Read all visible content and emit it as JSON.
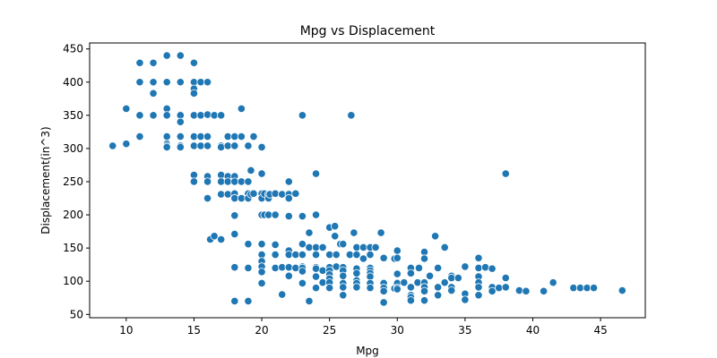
{
  "chart_data": {
    "type": "scatter",
    "title": "Mpg vs Displacement",
    "xlabel": "Mpg",
    "ylabel": "Displacement(in^3)",
    "xlim": [
      7.3,
      48.3
    ],
    "ylim": [
      45,
      459
    ],
    "x_ticks": [
      10,
      15,
      20,
      25,
      30,
      35,
      40,
      45
    ],
    "y_ticks": [
      50,
      100,
      150,
      200,
      250,
      300,
      350,
      400,
      450
    ],
    "grid": false,
    "marker_color": "#1f77b4",
    "points": [
      [
        9,
        304
      ],
      [
        10,
        360
      ],
      [
        10,
        307
      ],
      [
        11,
        429
      ],
      [
        11,
        400
      ],
      [
        11,
        350
      ],
      [
        11,
        318
      ],
      [
        12,
        429
      ],
      [
        12,
        400
      ],
      [
        12,
        383
      ],
      [
        12,
        350
      ],
      [
        13,
        440
      ],
      [
        13,
        400
      ],
      [
        13,
        360
      ],
      [
        13,
        350
      ],
      [
        13,
        318
      ],
      [
        13,
        307
      ],
      [
        13,
        304
      ],
      [
        13,
        302
      ],
      [
        14,
        440
      ],
      [
        14,
        400
      ],
      [
        14,
        351
      ],
      [
        14,
        350
      ],
      [
        14,
        340
      ],
      [
        14,
        318
      ],
      [
        14,
        304
      ],
      [
        14,
        302
      ],
      [
        15,
        429
      ],
      [
        15,
        400
      ],
      [
        15,
        390
      ],
      [
        15,
        383
      ],
      [
        15,
        350
      ],
      [
        15,
        318
      ],
      [
        15,
        304
      ],
      [
        15,
        260
      ],
      [
        15,
        250
      ],
      [
        15.5,
        400
      ],
      [
        15.5,
        350
      ],
      [
        15.5,
        318
      ],
      [
        15.5,
        304
      ],
      [
        16,
        400
      ],
      [
        16,
        351
      ],
      [
        16,
        318
      ],
      [
        16,
        304
      ],
      [
        16,
        258
      ],
      [
        16,
        250
      ],
      [
        16,
        225
      ],
      [
        16.2,
        163
      ],
      [
        16.5,
        168
      ],
      [
        16.5,
        350
      ],
      [
        17,
        350
      ],
      [
        17,
        304
      ],
      [
        17,
        302
      ],
      [
        17,
        260
      ],
      [
        17,
        250
      ],
      [
        17,
        231
      ],
      [
        17,
        163
      ],
      [
        17.5,
        318
      ],
      [
        17.5,
        304
      ],
      [
        17.5,
        258
      ],
      [
        17.5,
        250
      ],
      [
        17.5,
        231
      ],
      [
        18,
        318
      ],
      [
        18,
        304
      ],
      [
        18,
        258
      ],
      [
        18,
        250
      ],
      [
        18,
        232
      ],
      [
        18,
        225
      ],
      [
        18,
        199
      ],
      [
        18,
        171
      ],
      [
        18,
        121
      ],
      [
        18,
        70
      ],
      [
        18.5,
        360
      ],
      [
        18.5,
        318
      ],
      [
        18.5,
        250
      ],
      [
        18.5,
        225
      ],
      [
        19,
        304
      ],
      [
        19,
        250
      ],
      [
        19,
        232
      ],
      [
        19,
        225
      ],
      [
        19,
        156
      ],
      [
        19,
        120
      ],
      [
        19,
        70
      ],
      [
        19.2,
        267
      ],
      [
        19.2,
        231
      ],
      [
        19.4,
        318
      ],
      [
        19.4,
        232
      ],
      [
        20,
        302
      ],
      [
        20,
        262
      ],
      [
        20,
        232
      ],
      [
        20,
        225
      ],
      [
        20,
        200
      ],
      [
        20,
        156
      ],
      [
        20,
        140
      ],
      [
        20,
        130
      ],
      [
        20,
        122
      ],
      [
        20,
        114
      ],
      [
        20,
        97
      ],
      [
        20.2,
        232
      ],
      [
        20.2,
        200
      ],
      [
        20.5,
        231
      ],
      [
        20.5,
        225
      ],
      [
        20.5,
        200
      ],
      [
        20.6,
        231
      ],
      [
        21,
        232
      ],
      [
        21,
        200
      ],
      [
        21,
        155
      ],
      [
        21,
        140
      ],
      [
        21,
        120
      ],
      [
        21.5,
        231
      ],
      [
        21.5,
        121
      ],
      [
        21.5,
        80
      ],
      [
        22,
        250
      ],
      [
        22,
        232
      ],
      [
        22,
        231
      ],
      [
        22,
        225
      ],
      [
        22,
        198
      ],
      [
        22,
        146
      ],
      [
        22,
        140
      ],
      [
        22,
        122
      ],
      [
        22,
        121
      ],
      [
        22,
        108
      ],
      [
        22.5,
        232
      ],
      [
        22.5,
        140
      ],
      [
        22.5,
        120
      ],
      [
        23,
        350
      ],
      [
        23,
        198
      ],
      [
        23,
        156
      ],
      [
        23,
        140
      ],
      [
        23,
        122
      ],
      [
        23,
        120
      ],
      [
        23,
        115
      ],
      [
        23,
        97
      ],
      [
        23.5,
        173
      ],
      [
        23.5,
        151
      ],
      [
        23.5,
        70
      ],
      [
        24,
        262
      ],
      [
        24,
        200
      ],
      [
        24,
        151
      ],
      [
        24,
        140
      ],
      [
        24,
        121
      ],
      [
        24,
        119
      ],
      [
        24,
        107
      ],
      [
        24,
        90
      ],
      [
        24.5,
        151
      ],
      [
        24.5,
        116
      ],
      [
        24.5,
        98
      ],
      [
        25,
        181
      ],
      [
        25,
        140
      ],
      [
        25,
        121
      ],
      [
        25,
        116
      ],
      [
        25,
        110
      ],
      [
        25,
        104
      ],
      [
        25,
        98
      ],
      [
        25,
        90
      ],
      [
        25.4,
        183
      ],
      [
        25.4,
        168
      ],
      [
        25.5,
        140
      ],
      [
        25.5,
        122
      ],
      [
        25.8,
        156
      ],
      [
        26,
        156
      ],
      [
        26,
        121
      ],
      [
        26,
        116
      ],
      [
        26,
        108
      ],
      [
        26,
        97
      ],
      [
        26,
        91
      ],
      [
        26,
        79
      ],
      [
        26.5,
        140
      ],
      [
        26.6,
        350
      ],
      [
        26.8,
        173
      ],
      [
        27,
        151
      ],
      [
        27,
        140
      ],
      [
        27,
        119
      ],
      [
        27,
        112
      ],
      [
        27,
        101
      ],
      [
        27,
        97
      ],
      [
        27,
        91
      ],
      [
        27.5,
        151
      ],
      [
        27.5,
        134
      ],
      [
        28,
        151
      ],
      [
        28,
        140
      ],
      [
        28,
        120
      ],
      [
        28,
        116
      ],
      [
        28,
        112
      ],
      [
        28,
        107
      ],
      [
        28,
        97
      ],
      [
        28,
        90
      ],
      [
        28.4,
        151
      ],
      [
        28.8,
        173
      ],
      [
        29,
        135
      ],
      [
        29,
        98
      ],
      [
        29,
        97
      ],
      [
        29,
        90
      ],
      [
        29,
        85
      ],
      [
        29,
        68
      ],
      [
        29.8,
        134
      ],
      [
        29.8,
        89
      ],
      [
        30,
        146
      ],
      [
        30,
        135
      ],
      [
        30,
        111
      ],
      [
        30,
        98
      ],
      [
        30,
        97
      ],
      [
        30,
        90
      ],
      [
        30,
        88
      ],
      [
        30.5,
        98
      ],
      [
        31,
        120
      ],
      [
        31,
        112
      ],
      [
        31,
        91
      ],
      [
        31,
        79
      ],
      [
        31,
        76
      ],
      [
        31,
        71
      ],
      [
        31.5,
        98
      ],
      [
        31.6,
        120
      ],
      [
        32,
        144
      ],
      [
        32,
        134
      ],
      [
        32,
        98
      ],
      [
        32,
        91
      ],
      [
        32,
        85
      ],
      [
        32,
        71
      ],
      [
        32.4,
        108
      ],
      [
        32.8,
        168
      ],
      [
        33,
        120
      ],
      [
        33,
        91
      ],
      [
        33,
        79
      ],
      [
        33.5,
        151
      ],
      [
        33.5,
        98
      ],
      [
        34,
        108
      ],
      [
        34,
        105
      ],
      [
        34,
        91
      ],
      [
        34,
        86
      ],
      [
        34.5,
        105
      ],
      [
        35,
        122
      ],
      [
        35,
        81
      ],
      [
        35,
        72
      ],
      [
        36,
        135
      ],
      [
        36,
        120
      ],
      [
        36,
        107
      ],
      [
        36,
        98
      ],
      [
        36,
        91
      ],
      [
        36,
        79
      ],
      [
        36.5,
        121
      ],
      [
        37,
        119
      ],
      [
        37,
        91
      ],
      [
        37,
        85
      ],
      [
        37.5,
        90
      ],
      [
        38,
        262
      ],
      [
        38,
        105
      ],
      [
        38,
        91
      ],
      [
        39,
        86
      ],
      [
        39.5,
        85
      ],
      [
        40.8,
        85
      ],
      [
        41.5,
        98
      ],
      [
        43,
        90
      ],
      [
        43.5,
        90
      ],
      [
        44,
        90
      ],
      [
        44.5,
        90
      ],
      [
        46.6,
        86
      ]
    ]
  }
}
